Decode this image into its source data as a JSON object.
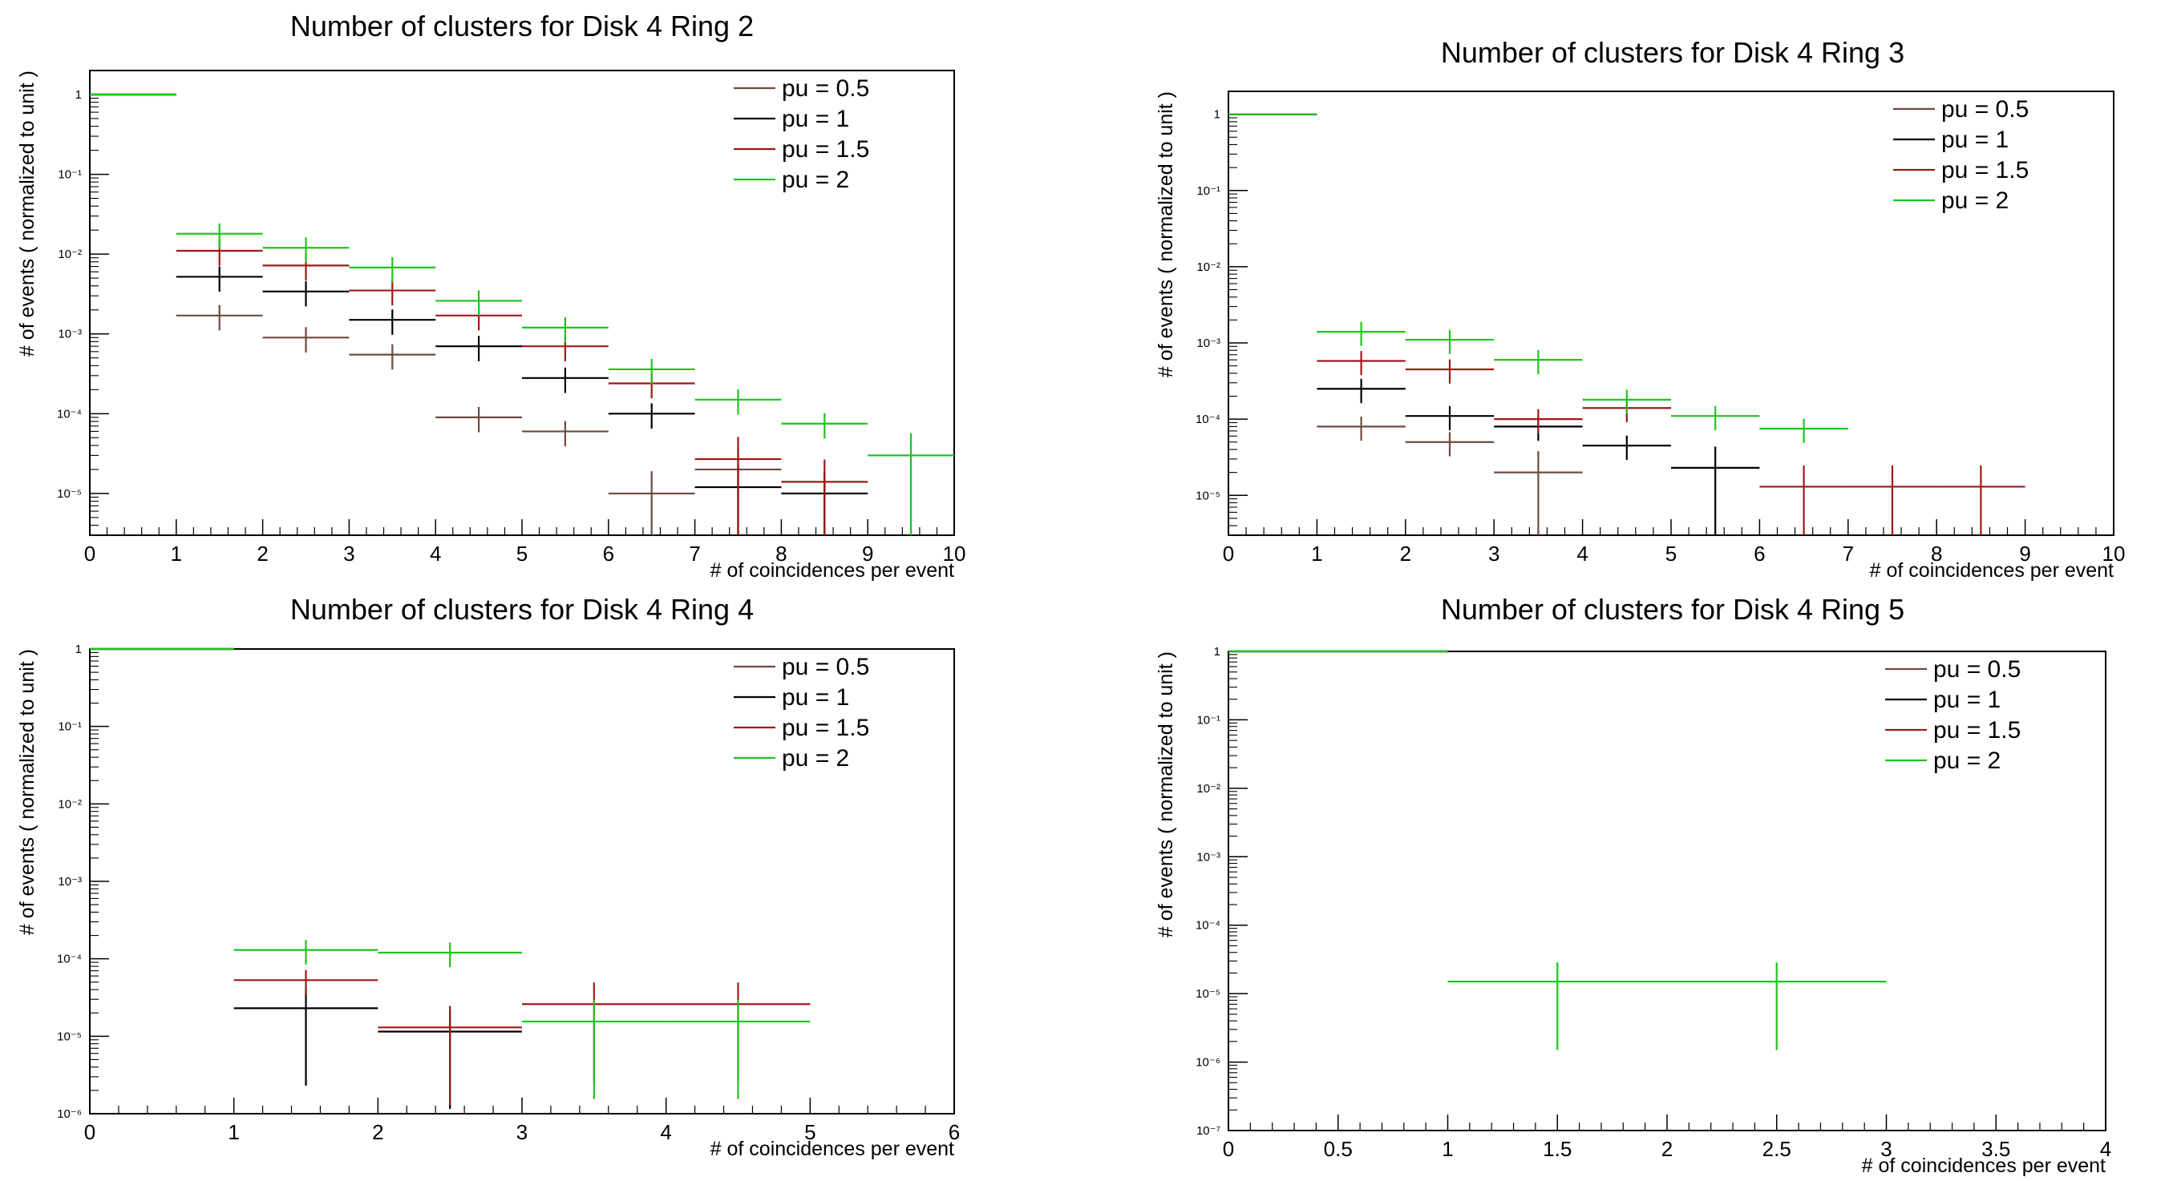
{
  "colors": {
    "pu = 0.5": "#6b4b3e",
    "pu = 1": "#000000",
    "pu = 1.5": "#a01818",
    "pu = 2": "#1fc41f"
  },
  "chart_data": [
    {
      "type": "histogram",
      "title": "Number of clusters for Disk 4 Ring 2",
      "xlabel": "# of coincidences per event",
      "ylabel": "# of events ( normalized to unit )",
      "xlim": [
        0,
        10
      ],
      "ylim": [
        3e-06,
        2
      ],
      "log_y": true,
      "x_ticks": [
        0,
        1,
        2,
        3,
        4,
        5,
        6,
        7,
        8,
        9,
        10
      ],
      "y_ticks": [
        1e-05,
        0.0001,
        0.001,
        0.01,
        0.1,
        1
      ],
      "y_tick_labels": [
        "10⁻⁵",
        "10⁻⁴",
        "10⁻³",
        "10⁻²",
        "10⁻¹",
        "1"
      ],
      "legend_position": "top-right",
      "series": [
        {
          "name": "pu = 0.5",
          "bins": [
            [
              0,
              1,
              1
            ],
            [
              1,
              2,
              0.0017
            ],
            [
              2,
              3,
              0.0009
            ],
            [
              3,
              4,
              0.00055
            ],
            [
              4,
              5,
              9e-05
            ],
            [
              5,
              6,
              6e-05
            ],
            [
              6,
              7,
              1e-05
            ],
            [
              7,
              8,
              2e-05
            ],
            [
              8,
              9,
              1e-05
            ]
          ]
        },
        {
          "name": "pu = 1",
          "bins": [
            [
              0,
              1,
              1
            ],
            [
              1,
              2,
              0.0052
            ],
            [
              2,
              3,
              0.0034
            ],
            [
              3,
              4,
              0.0015
            ],
            [
              4,
              5,
              0.0007
            ],
            [
              5,
              6,
              0.00028
            ],
            [
              6,
              7,
              0.0001
            ],
            [
              7,
              8,
              1.2e-05
            ],
            [
              8,
              9,
              1e-05
            ]
          ]
        },
        {
          "name": "pu = 1.5",
          "bins": [
            [
              0,
              1,
              1
            ],
            [
              1,
              2,
              0.011
            ],
            [
              2,
              3,
              0.0072
            ],
            [
              3,
              4,
              0.0035
            ],
            [
              4,
              5,
              0.0017
            ],
            [
              5,
              6,
              0.0007
            ],
            [
              6,
              7,
              0.00024
            ],
            [
              7,
              8,
              2.7e-05
            ],
            [
              8,
              9,
              1.4e-05
            ]
          ]
        },
        {
          "name": "pu = 2",
          "bins": [
            [
              0,
              1,
              1
            ],
            [
              1,
              2,
              0.018
            ],
            [
              2,
              3,
              0.012
            ],
            [
              3,
              4,
              0.0068
            ],
            [
              4,
              5,
              0.0026
            ],
            [
              5,
              6,
              0.0012
            ],
            [
              6,
              7,
              0.00036
            ],
            [
              7,
              8,
              0.00015
            ],
            [
              8,
              9,
              7.5e-05
            ],
            [
              9,
              10,
              3e-05
            ]
          ]
        }
      ]
    },
    {
      "type": "histogram",
      "title": "Number of clusters for Disk 4 Ring 3",
      "xlabel": "# of coincidences per event",
      "ylabel": "# of events ( normalized to unit )",
      "xlim": [
        0,
        10
      ],
      "ylim": [
        3e-06,
        2
      ],
      "log_y": true,
      "x_ticks": [
        0,
        1,
        2,
        3,
        4,
        5,
        6,
        7,
        8,
        9,
        10
      ],
      "y_ticks": [
        1e-05,
        0.0001,
        0.001,
        0.01,
        0.1,
        1
      ],
      "y_tick_labels": [
        "10⁻⁵",
        "10⁻⁴",
        "10⁻³",
        "10⁻²",
        "10⁻¹",
        "1"
      ],
      "legend_position": "top-right",
      "series": [
        {
          "name": "pu = 0.5",
          "bins": [
            [
              0,
              1,
              1
            ],
            [
              1,
              2,
              8e-05
            ],
            [
              2,
              3,
              5e-05
            ],
            [
              3,
              4,
              2e-05
            ]
          ]
        },
        {
          "name": "pu = 1",
          "bins": [
            [
              0,
              1,
              1
            ],
            [
              1,
              2,
              0.00025
            ],
            [
              2,
              3,
              0.00011
            ],
            [
              3,
              4,
              8e-05
            ],
            [
              4,
              5,
              4.5e-05
            ],
            [
              5,
              6,
              2.3e-05
            ]
          ]
        },
        {
          "name": "pu = 1.5",
          "bins": [
            [
              0,
              1,
              1
            ],
            [
              1,
              2,
              0.00058
            ],
            [
              2,
              3,
              0.00045
            ],
            [
              3,
              4,
              0.0001
            ],
            [
              4,
              5,
              0.00014
            ],
            [
              6,
              7,
              1.3e-05
            ],
            [
              7,
              8,
              1.3e-05
            ],
            [
              8,
              9,
              1.3e-05
            ]
          ]
        },
        {
          "name": "pu = 2",
          "bins": [
            [
              0,
              1,
              1
            ],
            [
              1,
              2,
              0.0014
            ],
            [
              2,
              3,
              0.0011
            ],
            [
              3,
              4,
              0.0006
            ],
            [
              4,
              5,
              0.00018
            ],
            [
              5,
              6,
              0.00011
            ],
            [
              6,
              7,
              7.5e-05
            ]
          ]
        }
      ]
    },
    {
      "type": "histogram",
      "title": "Number of clusters for Disk 4 Ring 4",
      "xlabel": "# of coincidences per event",
      "ylabel": "# of events ( normalized to unit )",
      "xlim": [
        0,
        6
      ],
      "ylim": [
        1e-06,
        1
      ],
      "log_y": true,
      "x_ticks": [
        0,
        1,
        2,
        3,
        4,
        5,
        6
      ],
      "y_ticks": [
        1e-06,
        1e-05,
        0.0001,
        0.001,
        0.01,
        0.1,
        1
      ],
      "y_tick_labels": [
        "10⁻⁶",
        "10⁻⁵",
        "10⁻⁴",
        "10⁻³",
        "10⁻²",
        "10⁻¹",
        "1"
      ],
      "legend_position": "top-right",
      "series": [
        {
          "name": "pu = 0.5",
          "bins": [
            [
              0,
              1,
              1
            ]
          ]
        },
        {
          "name": "pu = 1",
          "bins": [
            [
              0,
              1,
              1
            ],
            [
              1,
              2,
              2.3e-05
            ],
            [
              2,
              3,
              1.15e-05
            ]
          ]
        },
        {
          "name": "pu = 1.5",
          "bins": [
            [
              0,
              1,
              1
            ],
            [
              1,
              2,
              5.3e-05
            ],
            [
              2,
              3,
              1.3e-05
            ],
            [
              3,
              4,
              2.6e-05
            ],
            [
              4,
              5,
              2.6e-05
            ]
          ]
        },
        {
          "name": "pu = 2",
          "bins": [
            [
              0,
              1,
              1
            ],
            [
              1,
              2,
              0.00013
            ],
            [
              2,
              3,
              0.00012
            ],
            [
              3,
              4,
              1.55e-05
            ],
            [
              4,
              5,
              1.55e-05
            ]
          ]
        }
      ]
    },
    {
      "type": "histogram",
      "title": "Number of clusters for Disk 4 Ring 5",
      "xlabel": "# of coincidences per event",
      "ylabel": "# of events ( normalized to unit )",
      "xlim": [
        0,
        4
      ],
      "ylim": [
        1e-07,
        1
      ],
      "log_y": true,
      "x_ticks": [
        0,
        0.5,
        1,
        1.5,
        2,
        2.5,
        3,
        3.5,
        4
      ],
      "y_ticks": [
        1e-07,
        1e-06,
        1e-05,
        0.0001,
        0.001,
        0.01,
        0.1,
        1
      ],
      "y_tick_labels": [
        "10⁻⁷",
        "10⁻⁶",
        "10⁻⁵",
        "10⁻⁴",
        "10⁻³",
        "10⁻²",
        "10⁻¹",
        "1"
      ],
      "legend_position": "top-right",
      "series": [
        {
          "name": "pu = 0.5",
          "bins": [
            [
              0,
              1,
              1
            ]
          ]
        },
        {
          "name": "pu = 1",
          "bins": [
            [
              0,
              1,
              1
            ]
          ]
        },
        {
          "name": "pu = 1.5",
          "bins": [
            [
              0,
              1,
              1
            ]
          ]
        },
        {
          "name": "pu = 2",
          "bins": [
            [
              0,
              1,
              1
            ],
            [
              1,
              2,
              1.5e-05
            ],
            [
              2,
              3,
              1.5e-05
            ]
          ]
        }
      ]
    }
  ]
}
